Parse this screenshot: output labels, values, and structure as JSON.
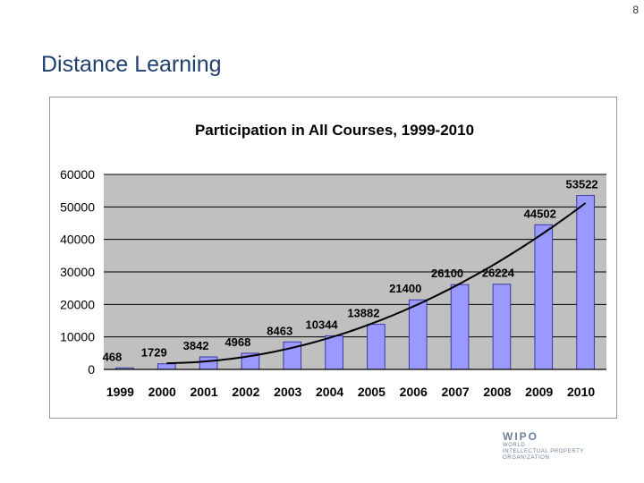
{
  "page_number": "8",
  "slide_title": "Distance Learning",
  "logo": {
    "mark": "WIPO",
    "line1": "WORLD",
    "line2": "INTELLECTUAL PROPERTY",
    "line3": "ORGANIZATION"
  },
  "colors": {
    "bar": "#9999ff",
    "bar_stroke": "#3b3ba0",
    "plot_bg": "#c0c0c0",
    "trend": "#000000"
  },
  "chart_data": {
    "type": "bar",
    "title": "Participation in All Courses, 1999-2010",
    "categories": [
      "1999",
      "2000",
      "2001",
      "2002",
      "2003",
      "2004",
      "2005",
      "2006",
      "2007",
      "2008",
      "2009",
      "2010"
    ],
    "values": [
      468,
      1729,
      3842,
      4968,
      8463,
      10344,
      13882,
      21400,
      26100,
      26224,
      44502,
      53522
    ],
    "data_labels": [
      "468",
      "1729",
      "3842",
      "4968",
      "8463",
      "10344",
      "13882",
      "21400",
      "26100",
      "26224",
      "44502",
      "53522"
    ],
    "yticks": [
      0,
      10000,
      20000,
      30000,
      40000,
      50000,
      60000
    ],
    "ytick_labels": [
      "0",
      "10000",
      "20000",
      "30000",
      "40000",
      "50000",
      "60000"
    ],
    "ylim": [
      0,
      60000
    ],
    "gridlines": true,
    "trendline": "polynomial",
    "xlabel": "",
    "ylabel": "",
    "legend": "none"
  }
}
